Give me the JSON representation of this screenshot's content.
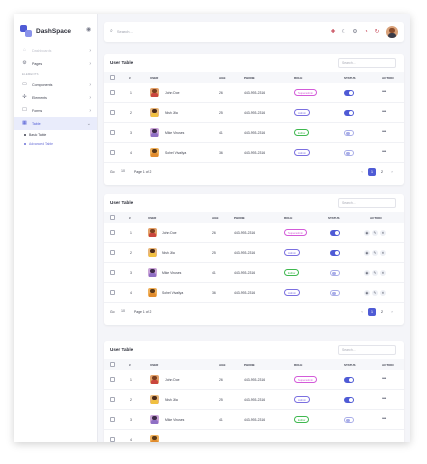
{
  "app": {
    "brand": "DashSpace"
  },
  "colors": {
    "accent": "#4f5bd5",
    "super_admin": "#d35bd9",
    "admin": "#7b6fe0",
    "editor": "#3fb84f"
  },
  "sidebar": {
    "items_top": [
      {
        "label": "Dashboards",
        "icon": "home-icon",
        "dim": true
      },
      {
        "label": "Pages",
        "icon": "settings-icon",
        "dim": false
      }
    ],
    "section": "ELEMENTS",
    "items": [
      {
        "label": "Components",
        "icon": "components-icon"
      },
      {
        "label": "Elements",
        "icon": "elements-icon"
      },
      {
        "label": "Forms",
        "icon": "forms-icon"
      },
      {
        "label": "Table",
        "icon": "table-icon",
        "active": true
      }
    ],
    "sub_items": [
      {
        "label": "Basic Table"
      },
      {
        "label": "Advanced Table"
      }
    ]
  },
  "topbar": {
    "search_placeholder": "Search..."
  },
  "tables": [
    {
      "title": "User Table",
      "search_placeholder": "Search...",
      "columns": [
        "#",
        "USER",
        "AGE",
        "PHONE",
        "ROLE",
        "STATUS",
        "ACTION"
      ],
      "variant": "dots",
      "rows": [
        {
          "num": "1",
          "name": "John Doe",
          "age": "26",
          "phone": "443-993-2316",
          "role": "Superadmin",
          "status": true
        },
        {
          "num": "2",
          "name": "Nish Jila",
          "age": "25",
          "phone": "443-993-2316",
          "role": "Admin",
          "status": true
        },
        {
          "num": "3",
          "name": "Mike Viruses",
          "age": "41",
          "phone": "443-993-2316",
          "role": "Editor",
          "status": false
        },
        {
          "num": "4",
          "name": "Sohel Vivaliya",
          "age": "36",
          "phone": "443-993-2316",
          "role": "Admin",
          "status": false
        }
      ],
      "footer": {
        "rows_label": "Go",
        "rows_value": "10",
        "page_info": "Page 1 of 2",
        "current_page": "1",
        "next_page": "2"
      }
    },
    {
      "title": "User Table",
      "search_placeholder": "Search...",
      "columns": [
        "#",
        "USER",
        "AGE",
        "PHONE",
        "ROLE",
        "STATUS",
        "ACTION"
      ],
      "variant": "icons",
      "rows": [
        {
          "num": "1",
          "name": "John Doe",
          "age": "26",
          "phone": "443-993-2316",
          "role": "Superadmin",
          "status": true
        },
        {
          "num": "2",
          "name": "Nish Jila",
          "age": "25",
          "phone": "443-993-2316",
          "role": "Admin",
          "status": true
        },
        {
          "num": "3",
          "name": "Mike Viruses",
          "age": "41",
          "phone": "443-993-2316",
          "role": "Editor",
          "status": false
        },
        {
          "num": "4",
          "name": "Sohel Vivaliya",
          "age": "36",
          "phone": "443-993-2316",
          "role": "Admin",
          "status": false
        }
      ],
      "footer": {
        "rows_label": "Go",
        "rows_value": "10",
        "page_info": "Page 1 of 2",
        "current_page": "1",
        "next_page": "2"
      }
    },
    {
      "title": "User Table",
      "search_placeholder": "Search...",
      "columns": [
        "#",
        "USER",
        "AGE",
        "PHONE",
        "ROLE",
        "STATUS",
        "ACTION"
      ],
      "variant": "dots",
      "rows": [
        {
          "num": "1",
          "name": "John Doe",
          "age": "26",
          "phone": "443-993-2316",
          "role": "Superadmin",
          "status": true
        },
        {
          "num": "2",
          "name": "Nish Jila",
          "age": "25",
          "phone": "443-993-2316",
          "role": "Admin",
          "status": true
        },
        {
          "num": "3",
          "name": "Mike Viruses",
          "age": "41",
          "phone": "443-993-2316",
          "role": "Editor",
          "status": false
        },
        {
          "num": "4",
          "name": "",
          "age": "",
          "phone": "",
          "role": "",
          "status": null
        }
      ]
    }
  ]
}
